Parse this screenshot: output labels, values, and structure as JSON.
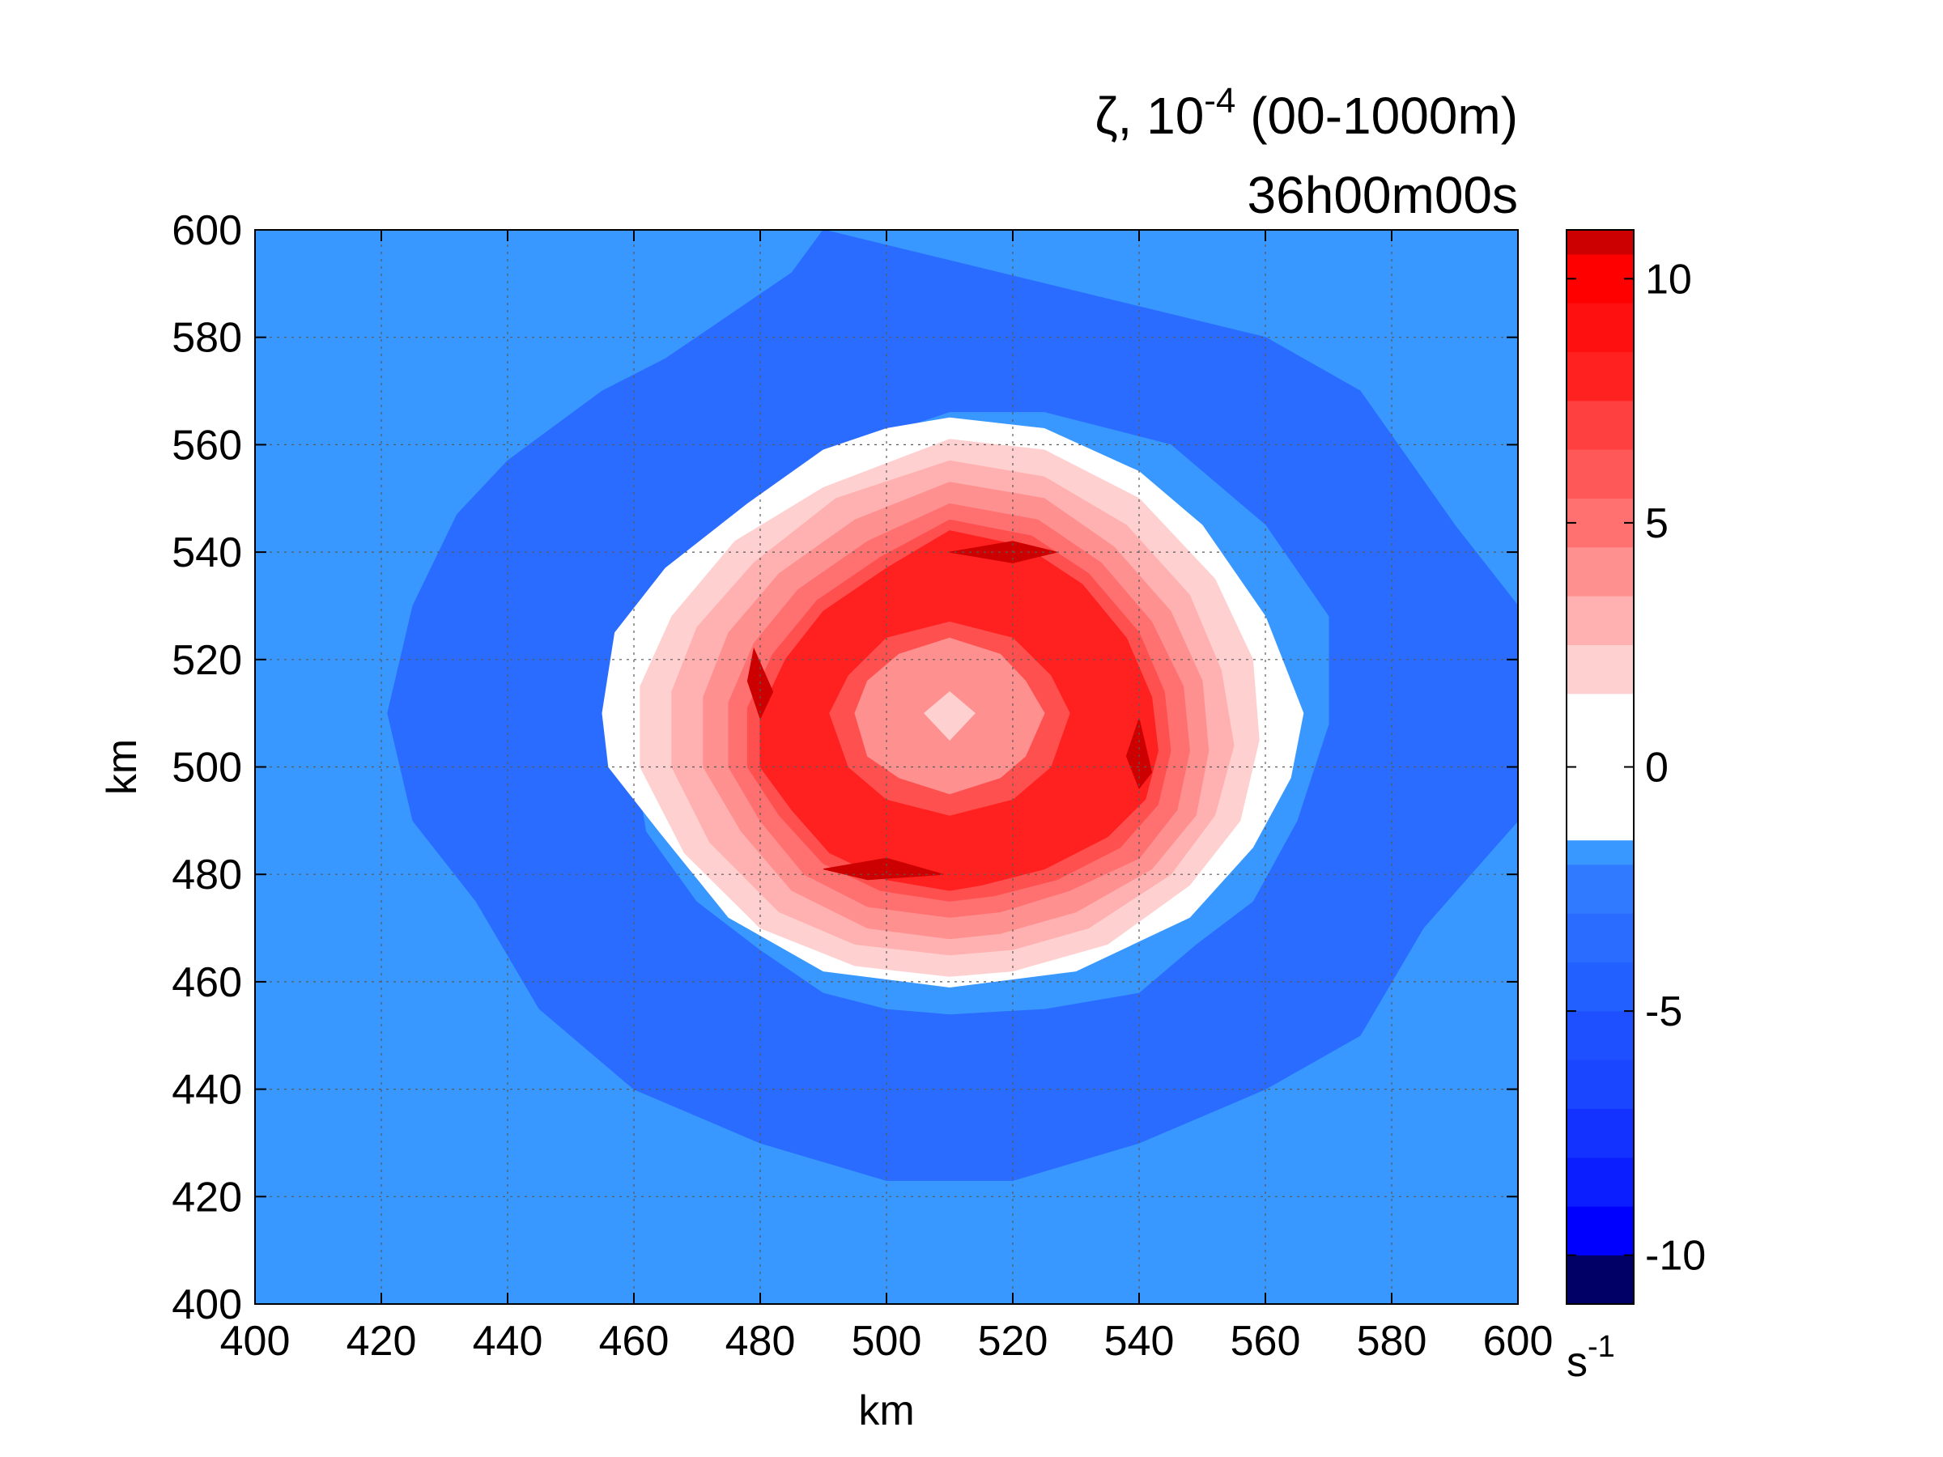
{
  "chart_data": {
    "type": "contourf",
    "title": {
      "line1_symbol": "ζ, 10",
      "line1_exponent": "-4",
      "line1_suffix": " (00-1000m)",
      "line2": "36h00m00s"
    },
    "xlabel": "km",
    "ylabel": "km",
    "xlim": [
      400,
      600
    ],
    "ylim": [
      400,
      600
    ],
    "xticks": [
      "400",
      "420",
      "440",
      "460",
      "480",
      "500",
      "520",
      "540",
      "560",
      "580",
      "600"
    ],
    "yticks": [
      "400",
      "420",
      "440",
      "460",
      "480",
      "500",
      "520",
      "540",
      "560",
      "580",
      "600"
    ],
    "grid": true,
    "colorbar": {
      "range": [
        -11,
        11
      ],
      "ticks": [
        {
          "value": 10,
          "label": "10"
        },
        {
          "value": 5,
          "label": "5"
        },
        {
          "value": 0,
          "label": "0"
        },
        {
          "value": -5,
          "label": "-5"
        },
        {
          "value": -10,
          "label": "-10"
        }
      ],
      "unit_base": "s",
      "unit_exponent": "-1",
      "bins": [
        {
          "min": -11,
          "max": -10,
          "color": "#000066"
        },
        {
          "min": -10,
          "max": -9,
          "color": "#0000ff"
        },
        {
          "min": -9,
          "max": -8,
          "color": "#0a1eff"
        },
        {
          "min": -8,
          "max": -7,
          "color": "#1432ff"
        },
        {
          "min": -7,
          "max": -6,
          "color": "#1a46ff"
        },
        {
          "min": -6,
          "max": -5,
          "color": "#1e50ff"
        },
        {
          "min": -5,
          "max": -4,
          "color": "#2260ff"
        },
        {
          "min": -4,
          "max": -3,
          "color": "#2a6cff"
        },
        {
          "min": -3,
          "max": -2,
          "color": "#2f7aff"
        },
        {
          "min": -2,
          "max": -1.5,
          "color": "#3898ff"
        },
        {
          "min": -1.5,
          "max": 1.5,
          "color": "#ffffff"
        },
        {
          "min": 1.5,
          "max": 2.5,
          "color": "#ffd0d0"
        },
        {
          "min": 2.5,
          "max": 3.5,
          "color": "#ffb0b0"
        },
        {
          "min": 3.5,
          "max": 4.5,
          "color": "#ff9090"
        },
        {
          "min": 4.5,
          "max": 5.5,
          "color": "#ff7070"
        },
        {
          "min": 5.5,
          "max": 6.5,
          "color": "#ff5858"
        },
        {
          "min": 6.5,
          "max": 7.5,
          "color": "#ff4040"
        },
        {
          "min": 7.5,
          "max": 8.5,
          "color": "#ff2020"
        },
        {
          "min": 8.5,
          "max": 9.5,
          "color": "#ff1010"
        },
        {
          "min": 9.5,
          "max": 10.5,
          "color": "#ff0000"
        },
        {
          "min": 10.5,
          "max": 11,
          "color": "#cc0000"
        }
      ]
    },
    "contour_regions": [
      {
        "level": "-2",
        "color": "#3898ff",
        "points": [
          [
            400,
            400
          ],
          [
            600,
            400
          ],
          [
            600,
            600
          ],
          [
            400,
            600
          ]
        ]
      },
      {
        "level": "-3",
        "color": "#2a6cff",
        "points": [
          [
            490,
            600
          ],
          [
            560,
            580
          ],
          [
            575,
            570
          ],
          [
            590,
            545
          ],
          [
            600,
            530
          ],
          [
            600,
            490
          ],
          [
            585,
            470
          ],
          [
            575,
            450
          ],
          [
            560,
            440
          ],
          [
            540,
            430
          ],
          [
            520,
            423
          ],
          [
            500,
            423
          ],
          [
            480,
            430
          ],
          [
            460,
            440
          ],
          [
            445,
            455
          ],
          [
            435,
            475
          ],
          [
            425,
            490
          ],
          [
            421,
            510
          ],
          [
            425,
            530
          ],
          [
            432,
            547
          ],
          [
            440,
            557
          ],
          [
            455,
            570
          ],
          [
            465,
            576
          ],
          [
            485,
            592
          ]
        ]
      },
      {
        "level": "-2 (inner)",
        "color": "#3898ff",
        "points": [
          [
            510,
            566
          ],
          [
            525,
            566
          ],
          [
            545,
            560
          ],
          [
            560,
            545
          ],
          [
            570,
            528
          ],
          [
            570,
            508
          ],
          [
            565,
            490
          ],
          [
            558,
            475
          ],
          [
            549,
            467
          ],
          [
            540,
            458
          ],
          [
            525,
            455
          ],
          [
            510,
            454
          ],
          [
            500,
            455
          ],
          [
            490,
            458
          ],
          [
            480,
            466
          ],
          [
            470,
            475
          ],
          [
            462,
            488
          ],
          [
            460,
            502
          ],
          [
            460,
            512
          ],
          [
            466,
            530
          ],
          [
            475,
            545
          ],
          [
            490,
            557
          ],
          [
            500,
            562
          ]
        ]
      },
      {
        "level": "0",
        "color": "#ffffff",
        "points": [
          [
            510,
            565
          ],
          [
            525,
            563
          ],
          [
            540,
            555
          ],
          [
            550,
            545
          ],
          [
            560,
            528
          ],
          [
            566,
            510
          ],
          [
            564,
            498
          ],
          [
            558,
            485
          ],
          [
            548,
            472
          ],
          [
            530,
            462
          ],
          [
            510,
            459
          ],
          [
            490,
            462
          ],
          [
            475,
            472
          ],
          [
            464,
            488
          ],
          [
            456,
            500
          ],
          [
            455,
            510
          ],
          [
            457,
            525
          ],
          [
            465,
            537
          ],
          [
            478,
            549
          ],
          [
            490,
            559
          ],
          [
            500,
            563
          ]
        ]
      },
      {
        "level": "2",
        "color": "#ffd0d0",
        "points": [
          [
            510,
            561
          ],
          [
            525,
            559
          ],
          [
            540,
            550
          ],
          [
            552,
            535
          ],
          [
            558,
            520
          ],
          [
            559,
            505
          ],
          [
            556,
            490
          ],
          [
            548,
            478
          ],
          [
            535,
            467
          ],
          [
            520,
            462
          ],
          [
            510,
            461
          ],
          [
            495,
            463
          ],
          [
            480,
            470
          ],
          [
            468,
            484
          ],
          [
            461,
            500
          ],
          [
            461,
            515
          ],
          [
            466,
            528
          ],
          [
            476,
            542
          ],
          [
            490,
            552
          ]
        ]
      },
      {
        "level": "3",
        "color": "#ffb0b0",
        "points": [
          [
            510,
            557
          ],
          [
            525,
            554
          ],
          [
            538,
            545
          ],
          [
            548,
            532
          ],
          [
            553,
            518
          ],
          [
            555,
            504
          ],
          [
            552,
            491
          ],
          [
            545,
            480
          ],
          [
            532,
            470
          ],
          [
            520,
            466
          ],
          [
            510,
            465
          ],
          [
            495,
            467
          ],
          [
            483,
            473
          ],
          [
            472,
            486
          ],
          [
            466,
            500
          ],
          [
            466,
            514
          ],
          [
            470,
            526
          ],
          [
            479,
            538
          ],
          [
            492,
            550
          ]
        ]
      },
      {
        "level": "4",
        "color": "#ff9090",
        "points": [
          [
            510,
            553
          ],
          [
            525,
            550
          ],
          [
            536,
            541
          ],
          [
            545,
            529
          ],
          [
            550,
            516
          ],
          [
            551,
            503
          ],
          [
            549,
            491
          ],
          [
            542,
            481
          ],
          [
            530,
            473
          ],
          [
            518,
            469
          ],
          [
            510,
            468
          ],
          [
            497,
            470
          ],
          [
            485,
            477
          ],
          [
            477,
            488
          ],
          [
            471,
            500
          ],
          [
            471,
            513
          ],
          [
            475,
            525
          ],
          [
            483,
            536
          ],
          [
            495,
            546
          ]
        ]
      },
      {
        "level": "5",
        "color": "#ff7070",
        "points": [
          [
            510,
            549
          ],
          [
            524,
            546
          ],
          [
            534,
            538
          ],
          [
            542,
            527
          ],
          [
            547,
            515
          ],
          [
            548,
            503
          ],
          [
            546,
            492
          ],
          [
            540,
            483
          ],
          [
            529,
            477
          ],
          [
            518,
            473
          ],
          [
            510,
            472
          ],
          [
            497,
            474
          ],
          [
            487,
            480
          ],
          [
            480,
            490
          ],
          [
            475,
            500
          ],
          [
            475,
            512
          ],
          [
            479,
            523
          ],
          [
            486,
            533
          ],
          [
            497,
            542
          ]
        ]
      },
      {
        "level": "6",
        "color": "#ff5050",
        "points": [
          [
            510,
            546
          ],
          [
            523,
            543
          ],
          [
            532,
            536
          ],
          [
            540,
            525
          ],
          [
            544,
            514
          ],
          [
            545,
            503
          ],
          [
            543,
            493
          ],
          [
            537,
            485
          ],
          [
            527,
            479
          ],
          [
            517,
            476
          ],
          [
            510,
            475
          ],
          [
            499,
            477
          ],
          [
            490,
            482
          ],
          [
            483,
            491
          ],
          [
            478,
            500
          ],
          [
            478,
            511
          ],
          [
            482,
            521
          ],
          [
            489,
            531
          ],
          [
            499,
            539
          ]
        ]
      },
      {
        "level": "8",
        "color": "#ff2020",
        "points": [
          [
            510,
            544
          ],
          [
            522,
            541
          ],
          [
            531,
            534
          ],
          [
            538,
            524
          ],
          [
            542,
            513
          ],
          [
            543,
            503
          ],
          [
            541,
            494
          ],
          [
            535,
            487
          ],
          [
            525,
            481
          ],
          [
            515,
            478
          ],
          [
            510,
            477
          ],
          [
            500,
            479
          ],
          [
            491,
            484
          ],
          [
            485,
            492
          ],
          [
            480,
            500
          ],
          [
            480,
            510
          ],
          [
            484,
            520
          ],
          [
            490,
            529
          ],
          [
            500,
            537
          ]
        ]
      },
      {
        "level": "7 (inner)",
        "color": "#ff5050",
        "points": [
          [
            510,
            527
          ],
          [
            520,
            524
          ],
          [
            526,
            517
          ],
          [
            529,
            510
          ],
          [
            526,
            500
          ],
          [
            520,
            494
          ],
          [
            510,
            491
          ],
          [
            500,
            494
          ],
          [
            494,
            500
          ],
          [
            491,
            510
          ],
          [
            494,
            517
          ],
          [
            500,
            524
          ]
        ]
      },
      {
        "level": "5 (inner)",
        "color": "#ff9090",
        "points": [
          [
            510,
            524
          ],
          [
            518,
            521
          ],
          [
            522,
            516
          ],
          [
            525,
            510
          ],
          [
            522,
            502
          ],
          [
            518,
            498
          ],
          [
            510,
            495
          ],
          [
            502,
            498
          ],
          [
            497,
            502
          ],
          [
            495,
            510
          ],
          [
            497,
            516
          ],
          [
            502,
            521
          ]
        ]
      },
      {
        "level": "3 (inner)",
        "color": "#ffd0d0",
        "points": [
          [
            510,
            514
          ],
          [
            514,
            510
          ],
          [
            510,
            505
          ],
          [
            506,
            510
          ]
        ]
      },
      {
        "level": "10",
        "color": "#cc0000",
        "points": [
          [
            510,
            540
          ],
          [
            520,
            542
          ],
          [
            527,
            540
          ],
          [
            520,
            538
          ]
        ]
      },
      {
        "level": "10",
        "color": "#cc0000",
        "points": [
          [
            479,
            522
          ],
          [
            482,
            514
          ],
          [
            480,
            509
          ],
          [
            478,
            516
          ]
        ]
      },
      {
        "level": "10",
        "color": "#cc0000",
        "points": [
          [
            540,
            509
          ],
          [
            542,
            499
          ],
          [
            540,
            496
          ],
          [
            538,
            502
          ]
        ]
      },
      {
        "level": "10",
        "color": "#cc0000",
        "points": [
          [
            490,
            481
          ],
          [
            500,
            483
          ],
          [
            509,
            480
          ],
          [
            497,
            479
          ]
        ]
      }
    ]
  }
}
